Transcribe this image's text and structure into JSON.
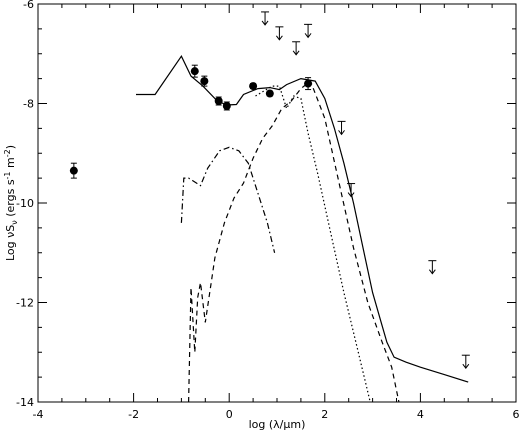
{
  "chart_data": {
    "type": "line",
    "title": "",
    "xlabel": "log (λ/μm)",
    "ylabel": "Log νS",
    "ylabel_sub": "ν",
    "ylabel_unit_open": " (ergs s",
    "ylabel_exp1": "-1",
    "ylabel_unit_mid": " m",
    "ylabel_exp2": "-2",
    "ylabel_unit_close": ")",
    "xlim": [
      -4,
      6
    ],
    "ylim": [
      -14,
      -6
    ],
    "xticks": [
      -4,
      -2,
      0,
      2,
      4,
      6
    ],
    "yticks": [
      -14,
      -12,
      -10,
      -8,
      -6
    ],
    "xtick_labels": [
      "-4",
      "-2",
      "0",
      "2",
      "4",
      "6"
    ],
    "ytick_labels": [
      "-14",
      "-12",
      "-10",
      "-8",
      "-6"
    ],
    "grid": false,
    "series": [
      {
        "style": "solid",
        "x": [
          -1.95,
          -1.55,
          -1.0,
          -0.8,
          -0.55,
          -0.25,
          -0.05,
          0.15,
          0.3,
          0.6,
          0.85,
          1.05,
          1.2,
          1.5,
          1.8,
          2.0,
          2.2,
          2.4,
          2.6,
          2.8,
          3.0,
          3.3,
          3.45,
          3.7,
          4.0,
          4.5,
          5.0
        ],
        "y": [
          -7.82,
          -7.82,
          -7.05,
          -7.45,
          -7.65,
          -7.95,
          -8.03,
          -8.02,
          -7.82,
          -7.7,
          -7.68,
          -7.72,
          -7.62,
          -7.5,
          -7.55,
          -7.9,
          -8.5,
          -9.2,
          -10.0,
          -10.9,
          -11.8,
          -12.8,
          -13.1,
          -13.2,
          -13.3,
          -13.45,
          -13.6
        ]
      },
      {
        "style": "dotted",
        "x": [
          0.55,
          0.9,
          1.05,
          1.2,
          1.35,
          1.5,
          1.65,
          1.85,
          2.1,
          2.4,
          2.7,
          2.95
        ],
        "y": [
          -7.85,
          -7.65,
          -7.65,
          -8.1,
          -7.85,
          -7.9,
          -8.6,
          -9.4,
          -10.5,
          -11.8,
          -13.0,
          -14.0
        ]
      },
      {
        "style": "dashed",
        "x": [
          -0.85,
          -0.8,
          -0.72,
          -0.66,
          -0.6,
          -0.5,
          -0.3,
          -0.1,
          0.1,
          0.3,
          0.5,
          0.7,
          0.9,
          1.1,
          1.3,
          1.5,
          1.7,
          2.0,
          2.3,
          2.6,
          2.9,
          3.2,
          3.4,
          3.55
        ],
        "y": [
          -14.0,
          -11.7,
          -13.0,
          -11.9,
          -11.6,
          -12.4,
          -11.1,
          -10.4,
          -9.9,
          -9.6,
          -9.1,
          -8.7,
          -8.45,
          -8.1,
          -7.95,
          -7.7,
          -7.55,
          -8.3,
          -9.6,
          -10.9,
          -12.0,
          -12.8,
          -13.3,
          -14.0
        ]
      },
      {
        "style": "dashdot",
        "x": [
          -1.0,
          -0.95,
          -0.85,
          -0.6,
          -0.45,
          -0.2,
          0.0,
          0.2,
          0.4,
          0.6,
          0.8,
          0.95
        ],
        "y": [
          -10.4,
          -9.5,
          -9.5,
          -9.65,
          -9.3,
          -8.95,
          -8.88,
          -8.95,
          -9.2,
          -9.8,
          -10.4,
          -11.0
        ]
      }
    ],
    "points": {
      "x": [
        -3.25,
        -0.72,
        -0.52,
        -0.22,
        -0.05,
        0.5,
        0.85,
        1.65
      ],
      "y": [
        -9.35,
        -7.35,
        -7.55,
        -7.95,
        -8.05,
        -7.65,
        -7.8,
        -7.6
      ],
      "err": [
        0.15,
        0.12,
        0.1,
        0.08,
        0.08,
        0.05,
        0.05,
        0.12
      ]
    },
    "upper_limits": {
      "x": [
        0.75,
        1.05,
        1.4,
        1.65,
        2.35,
        2.55,
        4.25,
        4.95
      ],
      "y": [
        -6.3,
        -6.6,
        -6.9,
        -6.55,
        -8.5,
        -9.75,
        -11.3,
        -13.2
      ]
    }
  }
}
